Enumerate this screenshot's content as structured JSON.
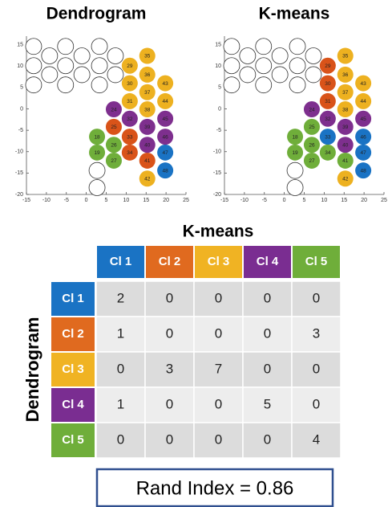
{
  "chart_data": [
    {
      "type": "scatter",
      "title": "Dendrogram",
      "xlim": [
        -15,
        25
      ],
      "ylim": [
        -20,
        17
      ],
      "xticks": [
        -15,
        -10,
        -5,
        0,
        5,
        10,
        15,
        20,
        25
      ],
      "yticks": [
        -20,
        -15,
        -10,
        -5,
        0,
        5,
        10,
        15
      ],
      "series": [
        {
          "color": "#ffffff",
          "x": [
            -13.2,
            -13.2,
            -13.2,
            -9.2,
            -9.2,
            -5.2,
            -5.2,
            -5.2,
            -1.1,
            -1.1,
            3.3,
            3.3,
            3.3,
            7.3,
            7.3,
            2.7,
            2.7
          ],
          "y": [
            14.6,
            10.1,
            5.6,
            12.4,
            8.0,
            14.6,
            10.1,
            5.6,
            12.4,
            8.0,
            14.6,
            10.1,
            5.6,
            12.4,
            8.0,
            -14.4,
            -18.4
          ]
        },
        {
          "color": "#1a73c4",
          "x": [
            19.8,
            19.8
          ],
          "y": [
            -10.2,
            -14.4
          ],
          "labels": [
            "47",
            "48"
          ]
        },
        {
          "color": "#d95319",
          "x": [
            6.9,
            10.9,
            10.9,
            15.3
          ],
          "y": [
            -4.2,
            -6.5,
            -10.2,
            -12.1
          ],
          "labels": [
            "25",
            "33",
            "34",
            "41"
          ]
        },
        {
          "color": "#edb120",
          "x": [
            10.9,
            10.9,
            15.3,
            15.3,
            19.8,
            10.9,
            15.3,
            19.8,
            15.3,
            15.3
          ],
          "y": [
            10.1,
            1.8,
            12.4,
            8.0,
            6.0,
            6.0,
            3.9,
            1.8,
            -0.1,
            -16.3
          ],
          "labels": [
            "29",
            "31",
            "35",
            "36",
            "43",
            "30",
            "37",
            "44",
            "38",
            "42"
          ]
        },
        {
          "color": "#7e2f8e",
          "x": [
            6.9,
            10.9,
            19.8,
            15.3,
            19.8,
            15.3
          ],
          "y": [
            -0.1,
            -2.3,
            -2.3,
            -4.2,
            -6.5,
            -8.4
          ],
          "labels": [
            "24",
            "32",
            "45",
            "39",
            "46",
            "40"
          ]
        },
        {
          "color": "#6fae3a",
          "x": [
            2.7,
            6.9,
            2.7,
            6.9
          ],
          "y": [
            -6.5,
            -8.4,
            -10.2,
            -12.1
          ],
          "labels": [
            "18",
            "26",
            "19",
            "27"
          ]
        }
      ]
    },
    {
      "type": "scatter",
      "title": "K-means",
      "xlim": [
        -15,
        25
      ],
      "ylim": [
        -20,
        17
      ],
      "xticks": [
        -15,
        -10,
        -5,
        0,
        5,
        10,
        15,
        20,
        25
      ],
      "yticks": [
        -20,
        -15,
        -10,
        -5,
        0,
        5,
        10,
        15
      ],
      "series": [
        {
          "color": "#ffffff",
          "x": [
            -13.2,
            -13.2,
            -13.2,
            -9.2,
            -9.2,
            -5.2,
            -5.2,
            -5.2,
            -1.1,
            -1.1,
            3.3,
            3.3,
            3.3,
            7.3,
            7.3,
            2.7,
            2.7
          ],
          "y": [
            14.6,
            10.1,
            5.6,
            12.4,
            8.0,
            14.6,
            10.1,
            5.6,
            12.4,
            8.0,
            14.6,
            10.1,
            5.6,
            12.4,
            8.0,
            -14.4,
            -18.4
          ]
        },
        {
          "color": "#1a73c4",
          "x": [
            19.8,
            19.8,
            19.8,
            10.9
          ],
          "y": [
            -10.2,
            -14.4,
            -6.5,
            -6.5
          ],
          "labels": [
            "47",
            "48",
            "46",
            "33"
          ]
        },
        {
          "color": "#d95319",
          "x": [
            10.9,
            10.9,
            10.9
          ],
          "y": [
            10.1,
            6.0,
            1.8
          ],
          "labels": [
            "29",
            "30",
            "31"
          ]
        },
        {
          "color": "#edb120",
          "x": [
            15.3,
            15.3,
            19.8,
            15.3,
            19.8,
            15.3,
            15.3
          ],
          "y": [
            12.4,
            8.0,
            6.0,
            3.9,
            1.8,
            -0.1,
            -16.3
          ],
          "labels": [
            "35",
            "36",
            "43",
            "37",
            "44",
            "38",
            "42"
          ]
        },
        {
          "color": "#7e2f8e",
          "x": [
            6.9,
            10.9,
            19.8,
            15.3,
            15.3
          ],
          "y": [
            -0.1,
            -2.3,
            -2.3,
            -4.2,
            -8.4
          ],
          "labels": [
            "24",
            "32",
            "45",
            "39",
            "40"
          ]
        },
        {
          "color": "#6fae3a",
          "x": [
            2.7,
            6.9,
            2.7,
            6.9,
            6.9,
            10.9,
            15.3
          ],
          "y": [
            -6.5,
            -8.4,
            -10.2,
            -12.1,
            -4.2,
            -10.2,
            -12.1
          ],
          "labels": [
            "18",
            "26",
            "19",
            "27",
            "25",
            "34",
            "41"
          ]
        }
      ]
    }
  ],
  "table": {
    "title": "K-means",
    "row_title": "Dendrogram",
    "columns": [
      "Cl 1",
      "Cl 2",
      "Cl 3",
      "Cl 4",
      "Cl 5"
    ],
    "colors": [
      "#1a73c4",
      "#e06a1f",
      "#f0b323",
      "#7a2d91",
      "#6fae3a"
    ],
    "rows": [
      {
        "label": "Cl 1",
        "values": [
          2,
          0,
          0,
          0,
          0
        ]
      },
      {
        "label": "Cl 2",
        "values": [
          1,
          0,
          0,
          0,
          3
        ]
      },
      {
        "label": "Cl 3",
        "values": [
          0,
          3,
          7,
          0,
          0
        ]
      },
      {
        "label": "Cl 4",
        "values": [
          1,
          0,
          0,
          5,
          0
        ]
      },
      {
        "label": "Cl 5",
        "values": [
          0,
          0,
          0,
          0,
          4
        ]
      }
    ]
  },
  "rand_index": "Rand Index = 0.86"
}
